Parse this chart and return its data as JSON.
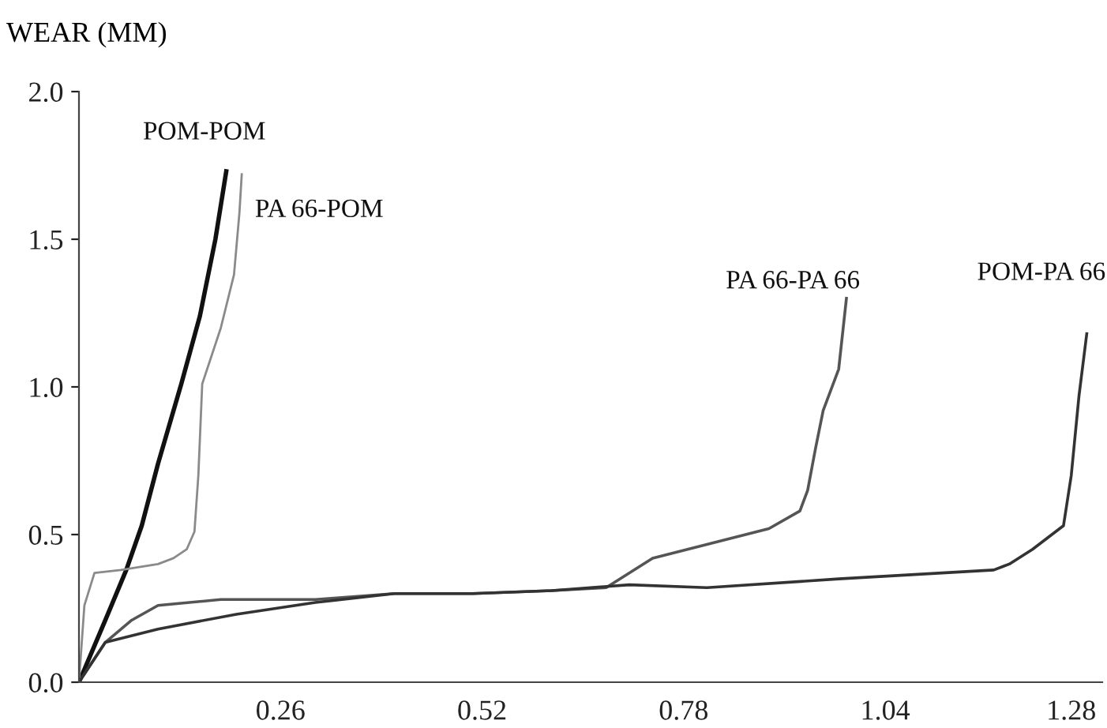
{
  "chart_data": {
    "type": "line",
    "ylabel": "WEAR (MM)",
    "xlim": [
      0,
      1.32
    ],
    "xticks": [
      0.26,
      0.52,
      0.78,
      1.04,
      1.28
    ],
    "ylim": [
      0,
      2.0
    ],
    "yticks": [
      {
        "value": 0,
        "label": "0.0"
      },
      0.5,
      {
        "value": 1,
        "label": "1.0"
      },
      1.5,
      {
        "value": 2,
        "label": "2.0"
      }
    ],
    "grid": false,
    "legend": false,
    "marker": "none",
    "line_style": "solid",
    "series": [
      {
        "name": "POM-POM",
        "color": "#111111",
        "x": [
          0,
          0.034,
          0.061,
          0.081,
          0.102,
          0.132,
          0.156,
          0.176,
          0.19
        ],
        "values": [
          0,
          0.21,
          0.38,
          0.53,
          0.74,
          1.01,
          1.24,
          1.5,
          1.73
        ]
      },
      {
        "name": "PA 66-POM",
        "color": "#8a8a8a",
        "x": [
          0,
          0.007,
          0.02,
          0.054,
          0.102,
          0.122,
          0.139,
          0.149,
          0.154,
          0.159,
          0.183,
          0.2,
          0.207,
          0.21
        ],
        "values": [
          0,
          0.26,
          0.37,
          0.38,
          0.4,
          0.42,
          0.45,
          0.51,
          0.7,
          1.01,
          1.2,
          1.38,
          1.59,
          1.72
        ]
      },
      {
        "name": "PA 66-PA 66",
        "color": "#555555",
        "x": [
          0,
          0.034,
          0.068,
          0.102,
          0.183,
          0.305,
          0.407,
          0.508,
          0.61,
          0.68,
          0.74,
          0.83,
          0.89,
          0.93,
          0.94,
          0.95,
          0.96,
          0.98,
          0.99
        ],
        "values": [
          0,
          0.135,
          0.21,
          0.26,
          0.28,
          0.28,
          0.3,
          0.3,
          0.31,
          0.32,
          0.42,
          0.48,
          0.52,
          0.58,
          0.65,
          0.79,
          0.92,
          1.06,
          1.3
        ]
      },
      {
        "name": "POM-PA 66",
        "color": "#333333",
        "x": [
          0,
          0.034,
          0.102,
          0.203,
          0.305,
          0.407,
          0.508,
          0.61,
          0.71,
          0.81,
          0.98,
          1.18,
          1.2,
          1.23,
          1.27,
          1.28,
          1.29,
          1.3
        ],
        "values": [
          0,
          0.135,
          0.18,
          0.23,
          0.27,
          0.3,
          0.3,
          0.31,
          0.33,
          0.32,
          0.35,
          0.38,
          0.4,
          0.45,
          0.53,
          0.7,
          0.97,
          1.18
        ]
      }
    ]
  }
}
